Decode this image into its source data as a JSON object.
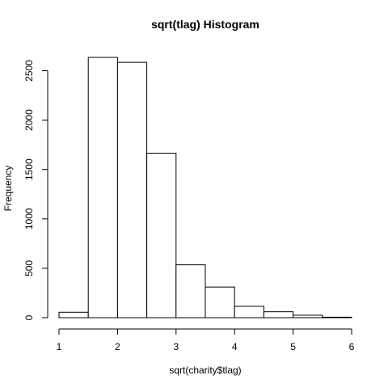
{
  "chart_data": {
    "type": "bar",
    "title": "sqrt(tlag) Histogram",
    "xlabel": "sqrt(charity$tlag)",
    "ylabel": "Frequency",
    "bins": [
      {
        "start": 1.0,
        "end": 1.5,
        "count": 55
      },
      {
        "start": 1.5,
        "end": 2.0,
        "count": 2635
      },
      {
        "start": 2.0,
        "end": 2.5,
        "count": 2585
      },
      {
        "start": 2.5,
        "end": 3.0,
        "count": 1665
      },
      {
        "start": 3.0,
        "end": 3.5,
        "count": 535
      },
      {
        "start": 3.5,
        "end": 4.0,
        "count": 310
      },
      {
        "start": 4.0,
        "end": 4.5,
        "count": 115
      },
      {
        "start": 4.5,
        "end": 5.0,
        "count": 60
      },
      {
        "start": 5.0,
        "end": 5.5,
        "count": 25
      },
      {
        "start": 5.5,
        "end": 6.0,
        "count": 5
      }
    ],
    "xlim": [
      1,
      6
    ],
    "ylim": [
      0,
      2635
    ],
    "x_ticks": [
      1,
      2,
      3,
      4,
      5,
      6
    ],
    "y_ticks": [
      0,
      500,
      1000,
      1500,
      2000,
      2500
    ],
    "grid": false
  }
}
